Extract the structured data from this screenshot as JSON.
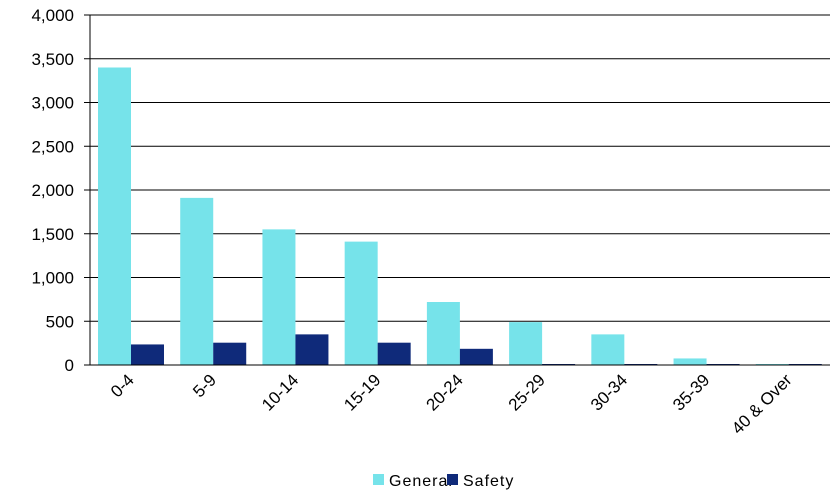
{
  "chart_data": {
    "type": "bar",
    "categories": [
      "0-4",
      "5-9",
      "10-14",
      "15-19",
      "20-24",
      "25-29",
      "30-34",
      "35-39",
      "40 & Over"
    ],
    "series": [
      {
        "name": "General",
        "values": [
          3400,
          1910,
          1550,
          1410,
          720,
          490,
          350,
          75,
          5
        ],
        "color": "#76e3ea"
      },
      {
        "name": "Safety",
        "values": [
          235,
          255,
          350,
          255,
          185,
          10,
          8,
          5,
          2
        ],
        "color": "#0f2a7a"
      }
    ],
    "yticks": [
      "0",
      "500",
      "1,000",
      "1,500",
      "2,000",
      "2,500",
      "3,000",
      "3,500",
      "4,000"
    ],
    "ylim": [
      0,
      4000
    ],
    "grid": true,
    "legend_position": "bottom"
  }
}
